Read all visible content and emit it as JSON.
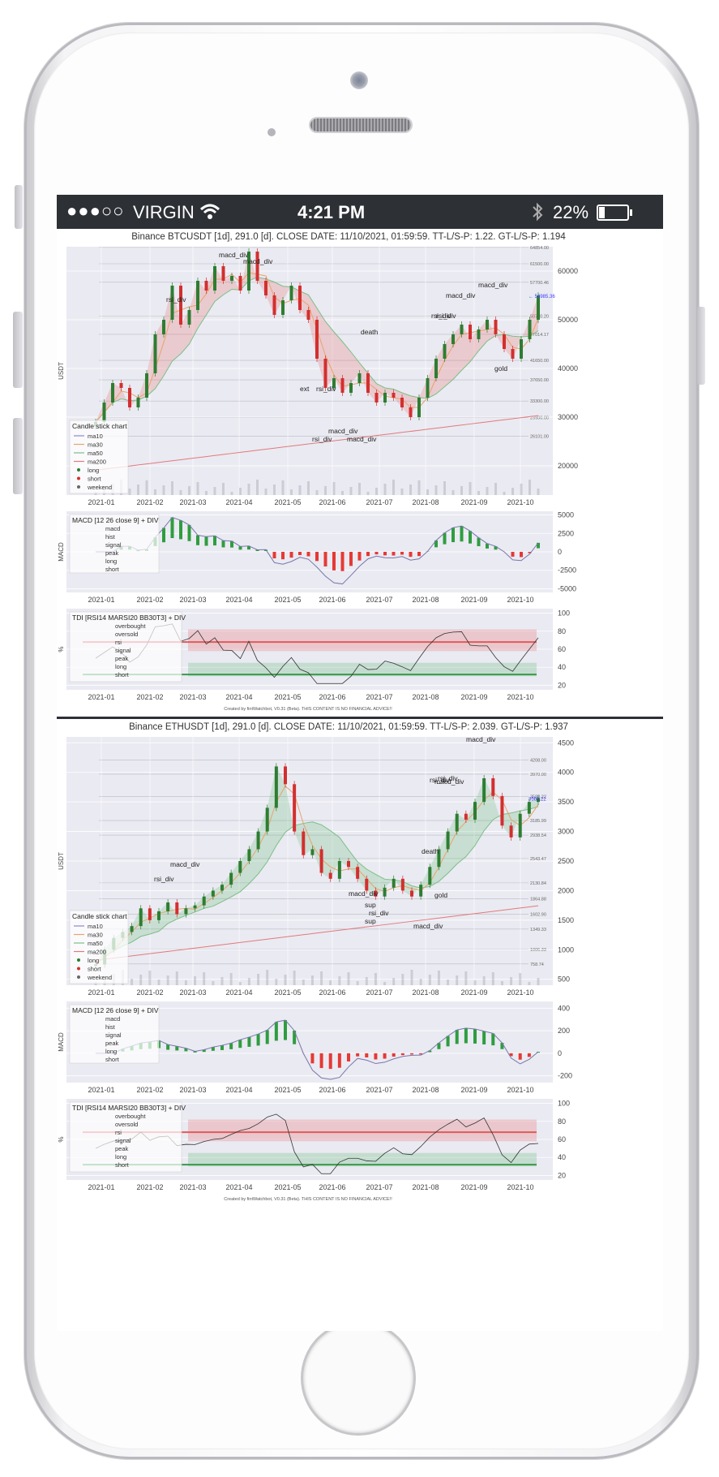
{
  "status_bar": {
    "carrier": "VIRGIN",
    "time": "4:21 PM",
    "battery": "22%",
    "battery_level": 0.22,
    "signal_icon": "signal-dots-icon",
    "wifi_icon": "wifi-icon",
    "bluetooth_icon": "bluetooth-icon"
  },
  "charts": [
    {
      "title": "Binance BTCUSDT [1d], 291.0 [d]. CLOSE DATE: 11/10/2021, 01:59:59. TT-L/S-P: 1.22. GT-L/S-P: 1.194",
      "price_ylabel": "USDT",
      "price_ticks": [
        "60000",
        "50000",
        "40000",
        "30000",
        "20000"
      ],
      "price_tick_values": [
        60000,
        50000,
        40000,
        30000,
        20000
      ],
      "price_range": [
        14000,
        65000
      ],
      "level_labels": [
        "64854.00",
        "61500.00",
        "57700.46",
        "50710.20",
        "47014.17",
        "41650.00",
        "37650.00",
        "33300.00",
        "29900.00",
        "26101.00"
      ],
      "level_values": [
        64854,
        61500,
        57700,
        50710,
        47014,
        41650,
        37650,
        33300,
        29900,
        26101
      ],
      "last_price": "← 54985.36",
      "last_price_value": 54985,
      "annotations": [
        "rsi_div",
        "macd_div",
        "macd_div",
        "rsi_div",
        "death",
        "ext",
        "rsi_div",
        "macd_div",
        "macd_div",
        "macd_div",
        "rsi_div",
        "gold",
        "rsi_div",
        "macd_div"
      ],
      "legend_title": "Candle stick chart",
      "legend_items": [
        "ma10",
        "ma30",
        "ma50",
        "ma200",
        "long",
        "short",
        "weekend"
      ],
      "macd": {
        "title": "MACD [12 26 close 9] + DIV",
        "ylabel": "MACD",
        "ticks": [
          "5000",
          "2500",
          "0",
          "-2500",
          "-5000"
        ],
        "tick_values": [
          5000,
          2500,
          0,
          -2500,
          -5000
        ],
        "range": [
          -5500,
          5500
        ],
        "legend_items": [
          "macd",
          "hist",
          "signal",
          "peak",
          "long",
          "short"
        ]
      },
      "tdi": {
        "title": "TDI [RSI14 MARSI20 BB30T3] + DIV",
        "ylabel": "%",
        "ticks": [
          "100",
          "80",
          "60",
          "40",
          "20"
        ],
        "tick_values": [
          100,
          80,
          60,
          40,
          20
        ],
        "range": [
          15,
          105
        ],
        "legend_items": [
          "overbought",
          "oversold",
          "rsi",
          "signal",
          "peak",
          "long",
          "short"
        ]
      },
      "x_ticks": [
        "2021-01",
        "2021-02",
        "2021-03",
        "2021-04",
        "2021-05",
        "2021-06",
        "2021-07",
        "2021-08",
        "2021-09",
        "2021-10"
      ],
      "footer": "Created by fintWatchbot, V0.31 (Beta). THIS CONTENT IS NO FINANCIAL ADVICE!!",
      "price_series": [
        29000,
        33000,
        37000,
        36000,
        32000,
        34000,
        39000,
        47000,
        50000,
        57000,
        49000,
        52000,
        58000,
        56000,
        61000,
        58000,
        59000,
        56000,
        64000,
        58000,
        55000,
        51000,
        54000,
        57000,
        52000,
        50000,
        42000,
        36000,
        38000,
        35000,
        37000,
        39000,
        35000,
        33000,
        35000,
        34000,
        32000,
        30000,
        34000,
        38000,
        42000,
        45000,
        47000,
        49000,
        46000,
        48000,
        50000,
        47000,
        44000,
        42000,
        46000,
        50000,
        54985
      ]
    },
    {
      "title": "Binance ETHUSDT [1d], 291.0 [d]. CLOSE DATE: 11/10/2021, 01:59:59. TT-L/S-P: 2.039. GT-L/S-P: 1.937",
      "price_ylabel": "USDT",
      "price_ticks": [
        "4500",
        "4000",
        "3500",
        "3000",
        "2500",
        "2000",
        "1500",
        "1000",
        "500"
      ],
      "price_tick_values": [
        4500,
        4000,
        3500,
        3000,
        2500,
        2000,
        1500,
        1000,
        500
      ],
      "price_range": [
        400,
        4600
      ],
      "level_labels": [
        "4208.00",
        "3970.00",
        "3588.22",
        "3185.99",
        "2938.54",
        "2543.47",
        "2130.84",
        "1864.88",
        "1602.90",
        "1349.33",
        "1006.33",
        "758.74"
      ],
      "level_values": [
        4208,
        3970,
        3588,
        3186,
        2938,
        2543,
        2131,
        1865,
        1603,
        1349,
        1006,
        759
      ],
      "last_price": "3565.22",
      "last_price_value": 3565,
      "annotations": [
        "macd_div",
        "rsi_div",
        "macd_div",
        "rsi_div",
        "death",
        "macd_div",
        "sup",
        "rsi_div",
        "sup",
        "macd_div",
        "gold",
        "macd_div",
        "rsi_div"
      ],
      "legend_title": "Candle stick chart",
      "legend_items": [
        "ma10",
        "ma30",
        "ma50",
        "ma200",
        "long",
        "short",
        "weekend"
      ],
      "macd": {
        "title": "MACD [12 26 close 9] + DIV",
        "ylabel": "MACD",
        "ticks": [
          "400",
          "200",
          "0",
          "-200"
        ],
        "tick_values": [
          400,
          200,
          0,
          -200
        ],
        "range": [
          -260,
          460
        ],
        "legend_items": [
          "macd",
          "hist",
          "signal",
          "peak",
          "long",
          "short"
        ]
      },
      "tdi": {
        "title": "TDI [RSI14 MARSI20 BB30T3] + DIV",
        "ylabel": "%",
        "ticks": [
          "100",
          "80",
          "60",
          "40",
          "20"
        ],
        "tick_values": [
          100,
          80,
          60,
          40,
          20
        ],
        "range": [
          15,
          105
        ],
        "legend_items": [
          "overbought",
          "oversold",
          "rsi",
          "signal",
          "peak",
          "long",
          "short"
        ]
      },
      "x_ticks": [
        "2021-01",
        "2021-02",
        "2021-03",
        "2021-04",
        "2021-05",
        "2021-06",
        "2021-07",
        "2021-08",
        "2021-09",
        "2021-10"
      ],
      "footer": "Created by fintWatchbot, V0.31 (Beta). THIS CONTENT IS NO FINANCIAL ADVICE!!",
      "price_series": [
        750,
        1000,
        1200,
        1300,
        1400,
        1700,
        1500,
        1650,
        1800,
        1600,
        1700,
        1750,
        1900,
        2000,
        2100,
        2300,
        2500,
        2700,
        3000,
        3400,
        4100,
        3800,
        3000,
        2600,
        2700,
        2300,
        2200,
        2500,
        2400,
        2200,
        2000,
        1900,
        2050,
        2200,
        2000,
        1900,
        2100,
        2400,
        2700,
        3000,
        3300,
        3200,
        3500,
        3900,
        3600,
        3100,
        2900,
        3300,
        3500,
        3565
      ]
    }
  ]
}
